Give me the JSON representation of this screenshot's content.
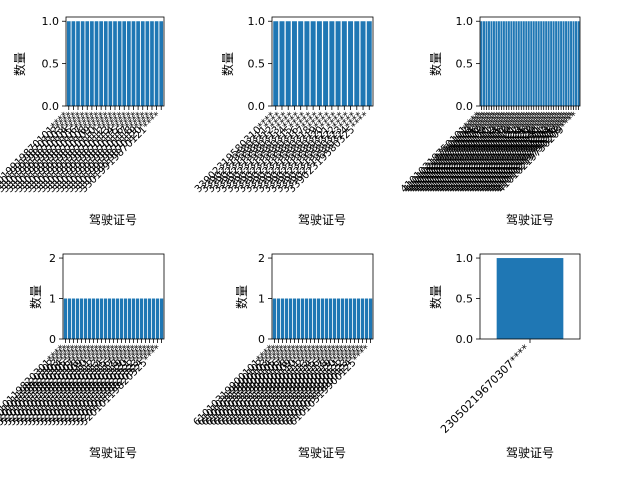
{
  "figure": {
    "grid": false,
    "legend": "none"
  },
  "chart_data": [
    {
      "type": "bar",
      "xlabel": "驾驶证号",
      "ylabel": "数量",
      "ylim": [
        0,
        1.05
      ],
      "yticks": [
        "0.0",
        "0.5",
        "1.0"
      ],
      "bar_color": "#1f77b4",
      "categories": [
        "33019919870101****",
        "33019919870102****",
        "33019919870103****",
        "33019919870104****",
        "33019919870105****",
        "33019919870106****",
        "33019919870107****",
        "33019919870108****",
        "33019919870109****",
        "33019919870110****",
        "33019919870111****",
        "33019919870112****",
        "33019919870113****",
        "33019919870114****",
        "33019919870115****",
        "33019919870116****",
        "33019919870117****",
        "33019919870118****",
        "33019919870119****",
        "33019919870120****",
        "33019919870121****"
      ],
      "values": [
        1,
        1,
        1,
        1,
        1,
        1,
        1,
        1,
        1,
        1,
        1,
        1,
        1,
        1,
        1,
        1,
        1,
        1,
        1,
        1,
        1
      ]
    },
    {
      "type": "bar",
      "xlabel": "驾驶证号",
      "ylabel": "数量",
      "ylim": [
        0,
        1.05
      ],
      "yticks": [
        "0.0",
        "0.5",
        "1.0"
      ],
      "bar_color": "#1f77b4",
      "categories": [
        "33902319580310****",
        "33902319580311****",
        "33902319580312****",
        "33902319580313****",
        "33902319580314****",
        "33902319580315****",
        "33902319580316****",
        "33902319580317****",
        "33902319580318****",
        "33902319580319****",
        "33902319580320****",
        "33902319580321****",
        "33902319580322****",
        "33902319580323****",
        "33902319580324****",
        "33902319580325****"
      ],
      "values": [
        1,
        1,
        1,
        1,
        1,
        1,
        1,
        1,
        1,
        1,
        1,
        1,
        1,
        1,
        1,
        1
      ]
    },
    {
      "type": "bar",
      "xlabel": "驾驶证号",
      "ylabel": "数量",
      "ylim": [
        0,
        1.05
      ],
      "yticks": [
        "0.0",
        "0.5",
        "1.0"
      ],
      "bar_color": "#1f77b4",
      "categories": [
        "41010219750101****",
        "41010219750102****",
        "41010219750103****",
        "41010219750104****",
        "41010219750105****",
        "41010219750106****",
        "41010219750107****",
        "41010219750108****",
        "41010219750109****",
        "41010219750110****",
        "41010219750111****",
        "41010219750112****",
        "41010219750113****",
        "41010219750114****",
        "41010219750115****",
        "41010219750116****",
        "41010219750117****",
        "41010219750118****",
        "41010219750119****",
        "41010219750120****",
        "41010219750121****",
        "41010219750122****",
        "41010219750123****",
        "41010219750124****",
        "41010219750125****",
        "41010219750126****",
        "41010219750127****",
        "41010219750128****",
        "41010219750129****",
        "41010219750130****",
        "41010219750131****",
        "41010219750201****",
        "41010219750202****",
        "41010219750203****",
        "41010219750204****",
        "41010219750205****",
        "41010219750206****",
        "41010219750207****",
        "41010219750208****",
        "41010219750209****"
      ],
      "values": [
        1,
        1,
        1,
        1,
        1,
        1,
        1,
        1,
        1,
        1,
        1,
        1,
        1,
        1,
        1,
        1,
        1,
        1,
        1,
        1,
        1,
        1,
        1,
        1,
        1,
        1,
        1,
        1,
        1,
        1,
        1,
        1,
        1,
        1,
        1,
        1,
        1,
        1,
        1,
        1
      ]
    },
    {
      "type": "bar",
      "xlabel": "驾驶证号",
      "ylabel": "数量",
      "ylim": [
        0,
        2.1
      ],
      "yticks": [
        "0",
        "1",
        "2"
      ],
      "bar_color": "#1f77b4",
      "categories": [
        "52010119820301****",
        "52010119820302****",
        "52010119820303****",
        "52010119820304****",
        "52010119820305****",
        "52010119820306****",
        "52010119820307****",
        "52010119820308****",
        "52010119820309****",
        "52010119820310****",
        "52010119820311****",
        "52010119820312****",
        "52010119820313****",
        "52010119820314****",
        "52010119820315****",
        "52010119820316****",
        "52010119820317****",
        "52010119820318****",
        "52010119820319****",
        "52010119820320****",
        "52010119820321****",
        "52010119820322****",
        "52010119820323****",
        "52010119820324****",
        "52010119820325****"
      ],
      "values": [
        1,
        1,
        1,
        1,
        1,
        1,
        1,
        1,
        1,
        1,
        1,
        1,
        1,
        1,
        1,
        1,
        1,
        1,
        1,
        1,
        1,
        1,
        1,
        1,
        1
      ]
    },
    {
      "type": "bar",
      "xlabel": "驾驶证号",
      "ylabel": "数量",
      "ylim": [
        0,
        2.1
      ],
      "yticks": [
        "0",
        "1",
        "2"
      ],
      "bar_color": "#1f77b4",
      "categories": [
        "61010319900101****",
        "61010319900102****",
        "61010319900103****",
        "61010319900104****",
        "61010319900105****",
        "61010319900106****",
        "61010319900107****",
        "61010319900108****",
        "61010319900109****",
        "61010319900110****",
        "61010319900111****",
        "61010319900112****",
        "61010319900113****",
        "61010319900114****",
        "61010319900115****",
        "61010319900116****",
        "61010319900117****",
        "61010319900118****",
        "61010319900119****",
        "61010319900120****",
        "61010319900121****",
        "61010319900122****",
        "61010319900123****",
        "61010319900124****",
        "61010319900125****"
      ],
      "values": [
        1,
        1,
        1,
        1,
        1,
        1,
        1,
        1,
        1,
        1,
        1,
        1,
        1,
        1,
        1,
        1,
        1,
        1,
        1,
        1,
        1,
        1,
        1,
        1,
        1
      ]
    },
    {
      "type": "bar",
      "xlabel": "驾驶证号",
      "ylabel": "数量",
      "ylim": [
        0,
        1.05
      ],
      "yticks": [
        "0.0",
        "0.5",
        "1.0"
      ],
      "bar_color": "#1f77b4",
      "categories": [
        "23050219670307****"
      ],
      "values": [
        1
      ]
    }
  ]
}
